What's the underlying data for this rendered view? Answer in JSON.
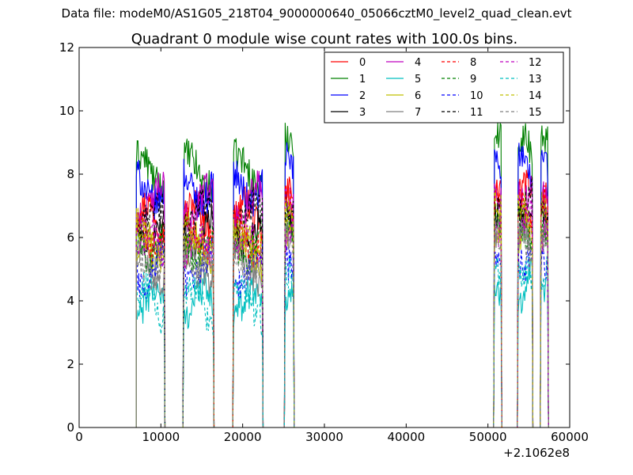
{
  "figure": {
    "supertitle": "Data file: modeM0/AS1G05_218T04_9000000640_05066cztM0_level2_quad_clean.evt"
  },
  "chart_data": {
    "type": "line",
    "title": "Quadrant 0 module wise count rates with 100.0s bins.",
    "xlabel": "",
    "ylabel": "",
    "xlim": [
      0,
      60000
    ],
    "ylim": [
      0,
      12
    ],
    "x_ticks": [
      "0",
      "10000",
      "20000",
      "30000",
      "40000",
      "50000",
      "60000"
    ],
    "y_ticks": [
      "0",
      "2",
      "4",
      "6",
      "8",
      "10",
      "12"
    ],
    "x_offset_label": "+2.1062e8",
    "grid": false,
    "legend_position": "top-right",
    "legend_columns": 4,
    "segments": [
      {
        "start": 7000,
        "end": 10400
      },
      {
        "start": 12800,
        "end": 16400
      },
      {
        "start": 18900,
        "end": 22400
      },
      {
        "start": 25200,
        "end": 26200
      },
      {
        "start": 50800,
        "end": 51600
      },
      {
        "start": 53700,
        "end": 55400
      },
      {
        "start": 56500,
        "end": 57300
      }
    ],
    "series": [
      {
        "name": "0",
        "color": "#ff0000",
        "dash": "solid",
        "level": 6.6
      },
      {
        "name": "1",
        "color": "#008000",
        "dash": "solid",
        "level": 8.1
      },
      {
        "name": "2",
        "color": "#0000ff",
        "dash": "solid",
        "level": 7.6
      },
      {
        "name": "3",
        "color": "#000000",
        "dash": "solid",
        "level": 6.3
      },
      {
        "name": "4",
        "color": "#bf00bf",
        "dash": "solid",
        "level": 7.1
      },
      {
        "name": "5",
        "color": "#00bfbf",
        "dash": "solid",
        "level": 3.9
      },
      {
        "name": "6",
        "color": "#bfbf00",
        "dash": "solid",
        "level": 5.5
      },
      {
        "name": "7",
        "color": "#808080",
        "dash": "solid",
        "level": 5.1
      },
      {
        "name": "8",
        "color": "#ff0000",
        "dash": "dashed",
        "level": 6.1
      },
      {
        "name": "9",
        "color": "#008000",
        "dash": "dashed",
        "level": 5.8
      },
      {
        "name": "10",
        "color": "#0000ff",
        "dash": "dashed",
        "level": 5.0
      },
      {
        "name": "11",
        "color": "#000000",
        "dash": "dashed",
        "level": 6.6
      },
      {
        "name": "12",
        "color": "#bf00bf",
        "dash": "dashed",
        "level": 5.6
      },
      {
        "name": "13",
        "color": "#00bfbf",
        "dash": "dashed",
        "level": 3.9
      },
      {
        "name": "14",
        "color": "#bfbf00",
        "dash": "dashed",
        "level": 5.9
      },
      {
        "name": "15",
        "color": "#808080",
        "dash": "dashed",
        "level": 5.3
      }
    ]
  }
}
